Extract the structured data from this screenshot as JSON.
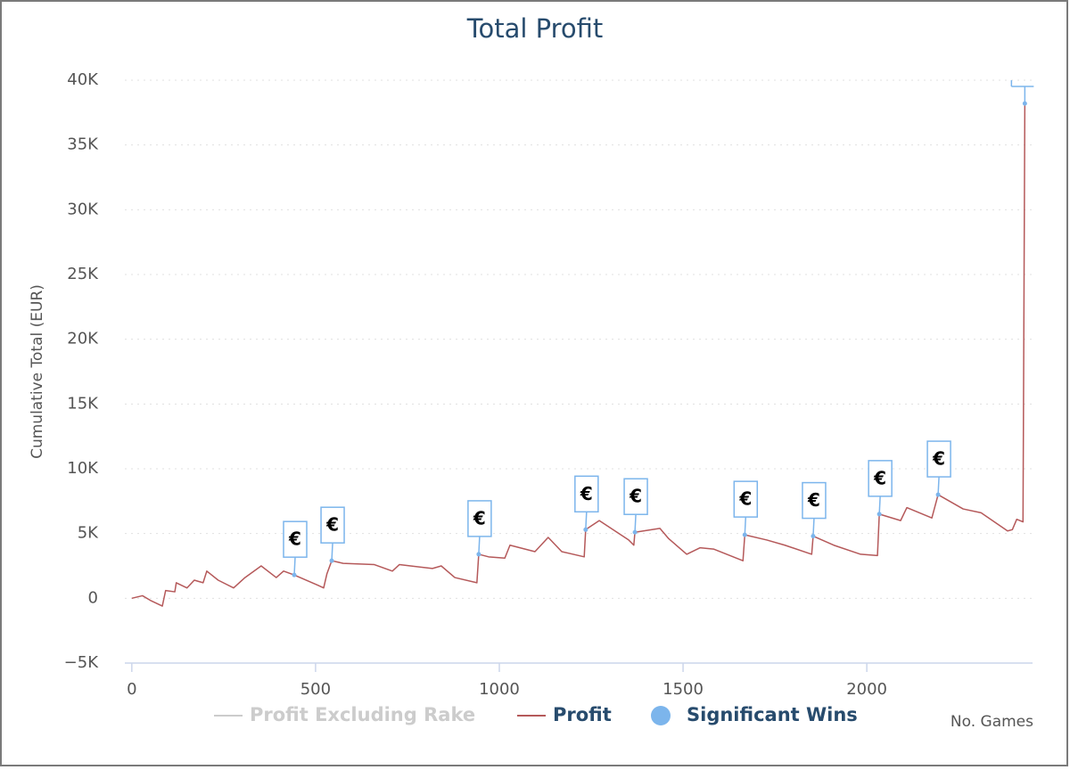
{
  "chart_data": {
    "type": "line",
    "title": "Total Profit",
    "x_label": "No. Games",
    "y_label": "Cumulative Total (EUR)",
    "xlim": [
      -19,
      2451
    ],
    "ylim": [
      -5000,
      40000
    ],
    "xticks": [
      0,
      500,
      1000,
      1500,
      2000
    ],
    "yticks": [
      {
        "value": -5000,
        "label": "−5K"
      },
      0,
      {
        "value": 5000,
        "label": "5K"
      },
      {
        "value": 10000,
        "label": "10K"
      },
      {
        "value": 15000,
        "label": "15K"
      },
      {
        "value": 20000,
        "label": "20K"
      },
      {
        "value": 25000,
        "label": "25K"
      },
      {
        "value": 30000,
        "label": "30K"
      },
      {
        "value": 35000,
        "label": "35K"
      },
      {
        "value": 40000,
        "label": "40K"
      }
    ],
    "grid": true,
    "legend": "bottom",
    "series": [
      {
        "name": "Profit Excluding Rake",
        "color": "#cccccc",
        "visible": false
      },
      {
        "name": "Profit",
        "type": "line",
        "color": "#b5595a",
        "visible": true,
        "x": [
          0,
          29,
          53,
          83,
          92,
          117,
          121,
          150,
          170,
          194,
          204,
          235,
          277,
          308,
          352,
          393,
          413,
          442,
          507,
          522,
          531,
          544,
          575,
          660,
          709,
          728,
          818,
          842,
          879,
          939,
          944,
          971,
          1015,
          1029,
          1097,
          1133,
          1170,
          1231,
          1235,
          1272,
          1352,
          1366,
          1369,
          1437,
          1461,
          1510,
          1546,
          1583,
          1663,
          1668,
          1728,
          1777,
          1850,
          1854,
          1910,
          1983,
          2029,
          2034,
          2092,
          2109,
          2177,
          2194,
          2262,
          2311,
          2383,
          2396,
          2408,
          2425,
          2430
        ],
        "values": [
          0,
          200,
          -200,
          -600,
          600,
          500,
          1200,
          800,
          1400,
          1200,
          2100,
          1400,
          800,
          1600,
          2500,
          1600,
          2100,
          1800,
          1000,
          800,
          1900,
          2900,
          2700,
          2600,
          2100,
          2600,
          2300,
          2500,
          1600,
          1200,
          3400,
          3200,
          3100,
          4100,
          3600,
          4700,
          3600,
          3200,
          5300,
          6000,
          4500,
          4100,
          5100,
          5400,
          4600,
          3400,
          3900,
          3800,
          2900,
          4900,
          4500,
          4100,
          3400,
          4800,
          4100,
          3400,
          3300,
          6500,
          6000,
          7000,
          6200,
          8000,
          6900,
          6600,
          5200,
          5300,
          6100,
          5900,
          38200
        ]
      },
      {
        "name": "Significant Wins",
        "type": "scatter",
        "color": "#7cb5ec",
        "visible": true,
        "x": [
          442,
          544,
          944,
          1235,
          1369,
          1668,
          1854,
          2034,
          2194,
          2430
        ],
        "values": [
          1800,
          2900,
          3400,
          5300,
          5100,
          4900,
          4800,
          6500,
          8000,
          38200
        ],
        "labels": [
          "€",
          "€",
          "€",
          "€",
          "€",
          "€",
          "€",
          "€",
          "€",
          null
        ]
      }
    ]
  }
}
